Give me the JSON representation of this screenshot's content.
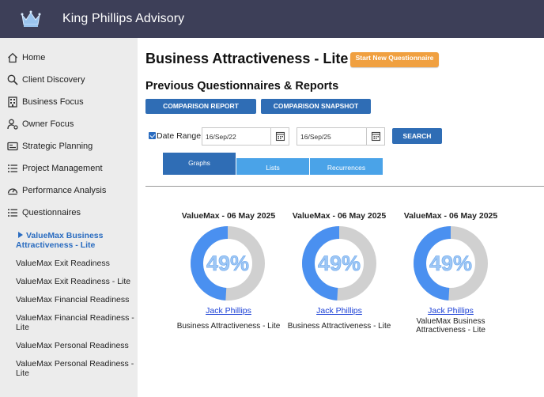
{
  "app": {
    "brand": "King Phillips Advisory",
    "logo_icon": "crown-icon"
  },
  "sidebar": {
    "items": [
      {
        "label": "Home",
        "icon": "home-icon"
      },
      {
        "label": "Client Discovery",
        "icon": "search-icon"
      },
      {
        "label": "Business Focus",
        "icon": "building-icon"
      },
      {
        "label": "Owner Focus",
        "icon": "user-gear-icon"
      },
      {
        "label": "Strategic Planning",
        "icon": "id-card-icon"
      },
      {
        "label": "Project Management",
        "icon": "list-icon"
      },
      {
        "label": "Performance Analysis",
        "icon": "gauge-icon"
      },
      {
        "label": "Questionnaires",
        "icon": "list-icon"
      }
    ],
    "sub_items": [
      {
        "label": "ValueMax Business Attractiveness - Lite",
        "active": true
      },
      {
        "label": "ValueMax Exit Readiness"
      },
      {
        "label": "ValueMax Exit Readiness - Lite"
      },
      {
        "label": "ValueMax Financial Readiness"
      },
      {
        "label": "ValueMax Financial Readiness - Lite"
      },
      {
        "label": "ValueMax Personal Readiness"
      },
      {
        "label": "ValueMax Personal Readiness - Lite"
      }
    ]
  },
  "main": {
    "title": "Business Attractiveness - Lite",
    "new_questionnaire_label": "Start New Questionnaire",
    "section_title": "Previous Questionnaires & Reports",
    "comparison_report_label": "COMPARISON REPORT",
    "comparison_snapshot_label": "COMPARISON SNAPSHOT",
    "date_range": {
      "checked": true,
      "label": "Date Range:",
      "from": "16/Sep/22",
      "to": "16/Sep/25",
      "search_label": "SEARCH"
    },
    "tabs": [
      {
        "label": "Graphs",
        "active": true
      },
      {
        "label": "Lists"
      },
      {
        "label": "Recurrences"
      }
    ],
    "cards": [
      {
        "title": "ValueMax - 06 May 2025",
        "percent": 49,
        "percent_label": "49%",
        "owner": "Jack Phillips",
        "questionnaire": "Business Attractiveness - Lite"
      },
      {
        "title": "ValueMax - 06 May 2025",
        "percent": 49,
        "percent_label": "49%",
        "owner": "Jack Phillips",
        "questionnaire": "Business Attractiveness - Lite"
      },
      {
        "title": "ValueMax - 06 May 2025",
        "percent": 49,
        "percent_label": "49%",
        "owner": "Jack Phillips",
        "questionnaire": "ValueMax Business Attractiveness - Lite"
      }
    ]
  },
  "colors": {
    "topbar": "#3d3f58",
    "accent_blue": "#2f6db5",
    "tab_inactive": "#4aa3e8",
    "orange": "#f0a040",
    "donut_fill": "#4a90f0",
    "donut_track": "#d0d0d0",
    "donut_text": "#9ec7f5"
  }
}
